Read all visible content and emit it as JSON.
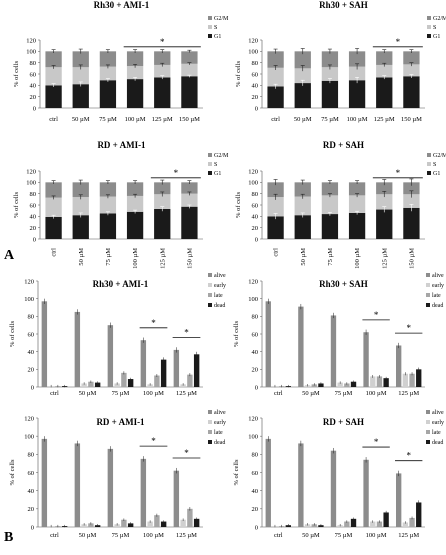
{
  "panel_labels": {
    "a": "A",
    "b": "B"
  },
  "colors": {
    "g2m": "#8c8c8c",
    "s": "#c8c8c8",
    "g1": "#1a1a1a",
    "alive": "#8c8c8c",
    "early": "#d0d0d0",
    "late": "#a6a6a6",
    "dead": "#1a1a1a"
  },
  "significance_marker": "*",
  "chart_data": [
    {
      "type": "bar",
      "stacked": true,
      "title": "Rh30 + AMI-1",
      "ylabel": "% of cells",
      "ylim": [
        0,
        120
      ],
      "yticks": [
        0,
        20,
        40,
        60,
        80,
        100,
        120
      ],
      "categories": [
        "ctrl",
        "50 µM",
        "75 µM",
        "100 µM",
        "125 µM",
        "150 µM"
      ],
      "series": [
        {
          "name": "G1",
          "values": [
            40,
            42,
            49,
            51,
            54,
            56
          ]
        },
        {
          "name": "S",
          "values": [
            32,
            30,
            24,
            23,
            22,
            22
          ]
        },
        {
          "name": "G2/M",
          "values": [
            28,
            28,
            27,
            26,
            24,
            22
          ]
        }
      ],
      "errors": [
        3,
        4,
        3,
        3,
        3,
        2
      ],
      "legend_position": "right",
      "significance": [
        {
          "from": 3,
          "to": 5,
          "label": "*"
        }
      ]
    },
    {
      "type": "bar",
      "stacked": true,
      "title": "Rh30 + SAH",
      "ylabel": "% of cells",
      "ylim": [
        0,
        120
      ],
      "yticks": [
        0,
        20,
        40,
        60,
        80,
        100,
        120
      ],
      "categories": [
        "ctrl",
        "50 µM",
        "75 µM",
        "100 µM",
        "125 µM",
        "150 µM"
      ],
      "series": [
        {
          "name": "G1",
          "values": [
            38,
            44,
            48,
            49,
            54,
            56
          ]
        },
        {
          "name": "S",
          "values": [
            33,
            26,
            24,
            24,
            22,
            21
          ]
        },
        {
          "name": "G2/M",
          "values": [
            29,
            30,
            28,
            27,
            24,
            23
          ]
        }
      ],
      "errors": [
        4,
        5,
        4,
        5,
        3,
        3
      ],
      "legend_position": "right",
      "significance": [
        {
          "from": 4,
          "to": 5,
          "label": "*"
        }
      ]
    },
    {
      "type": "bar",
      "stacked": true,
      "title": "RD + AMI-1",
      "ylabel": "% of cells",
      "ylim": [
        0,
        120
      ],
      "yticks": [
        0,
        20,
        40,
        60,
        80,
        100,
        120
      ],
      "categories": [
        "ctrl",
        "50 µM",
        "75 µM",
        "100 µM",
        "125 µM",
        "150 µM"
      ],
      "series": [
        {
          "name": "G1",
          "values": [
            39,
            42,
            45,
            48,
            53,
            57
          ]
        },
        {
          "name": "S",
          "values": [
            34,
            32,
            30,
            28,
            26,
            23
          ]
        },
        {
          "name": "G2/M",
          "values": [
            27,
            26,
            25,
            24,
            21,
            20
          ]
        }
      ],
      "errors": [
        3,
        4,
        3,
        3,
        4,
        3
      ],
      "legend_position": "right",
      "significance": [
        {
          "from": 4,
          "to": 5,
          "label": "*"
        }
      ]
    },
    {
      "type": "bar",
      "stacked": true,
      "title": "RD + SAH",
      "ylabel": "% of cells",
      "ylim": [
        0,
        120
      ],
      "yticks": [
        0,
        20,
        40,
        60,
        80,
        100,
        120
      ],
      "categories": [
        "ctrl",
        "50 µM",
        "75 µM",
        "100 µM",
        "125 µM",
        "150 µM"
      ],
      "series": [
        {
          "name": "G1",
          "values": [
            40,
            42,
            44,
            46,
            52,
            55
          ]
        },
        {
          "name": "S",
          "values": [
            34,
            33,
            33,
            31,
            27,
            24
          ]
        },
        {
          "name": "G2/M",
          "values": [
            26,
            25,
            23,
            23,
            21,
            21
          ]
        }
      ],
      "errors": [
        5,
        4,
        3,
        3,
        5,
        6
      ],
      "legend_position": "right",
      "significance": [
        {
          "from": 4,
          "to": 5,
          "label": "*"
        }
      ]
    },
    {
      "type": "bar",
      "grouped": true,
      "title": "Rh30 + AMI-1",
      "ylabel": "% of cells",
      "ylim": [
        0,
        120
      ],
      "yticks": [
        0,
        20,
        40,
        60,
        80,
        100,
        120
      ],
      "categories": [
        "ctrl",
        "50 µM",
        "75 µM",
        "100 µM",
        "125 µM"
      ],
      "series": [
        {
          "name": "alive",
          "values": [
            97,
            85,
            70,
            53,
            42
          ]
        },
        {
          "name": "early",
          "values": [
            1,
            4,
            4,
            3,
            3
          ]
        },
        {
          "name": "late",
          "values": [
            1,
            6,
            16,
            13,
            14
          ]
        },
        {
          "name": "dead",
          "values": [
            1,
            5,
            9,
            31,
            37
          ]
        }
      ],
      "legend_position": "right",
      "significance": [
        {
          "from": 3,
          "to": 3,
          "label": "*"
        },
        {
          "from": 4,
          "to": 4,
          "label": "*"
        }
      ]
    },
    {
      "type": "bar",
      "grouped": true,
      "title": "Rh30 + SAH",
      "ylabel": "% of cells",
      "ylim": [
        0,
        120
      ],
      "yticks": [
        0,
        20,
        40,
        60,
        80,
        100,
        120
      ],
      "categories": [
        "ctrl",
        "50 µM",
        "75 µM",
        "100 µM",
        "125 µM"
      ],
      "series": [
        {
          "name": "alive",
          "values": [
            97,
            91,
            81,
            62,
            47
          ]
        },
        {
          "name": "early",
          "values": [
            1,
            2,
            5,
            12,
            15
          ]
        },
        {
          "name": "late",
          "values": [
            1,
            3,
            4,
            12,
            15
          ]
        },
        {
          "name": "dead",
          "values": [
            1,
            4,
            6,
            10,
            20
          ]
        }
      ],
      "legend_position": "right",
      "significance": [
        {
          "from": 3,
          "to": 3,
          "label": "*"
        },
        {
          "from": 4,
          "to": 4,
          "label": "*"
        }
      ]
    },
    {
      "type": "bar",
      "grouped": true,
      "title": "RD + AMI-1",
      "ylabel": "% of cells",
      "ylim": [
        0,
        120
      ],
      "yticks": [
        0,
        20,
        40,
        60,
        80,
        100,
        120
      ],
      "categories": [
        "ctrl",
        "50 µM",
        "75 µM",
        "100 µM",
        "125 µM"
      ],
      "series": [
        {
          "name": "alive",
          "values": [
            97,
            92,
            86,
            75,
            62
          ]
        },
        {
          "name": "early",
          "values": [
            1,
            3,
            3,
            6,
            8
          ]
        },
        {
          "name": "late",
          "values": [
            1,
            4,
            8,
            13,
            20
          ]
        },
        {
          "name": "dead",
          "values": [
            1,
            2,
            4,
            6,
            9
          ]
        }
      ],
      "legend_position": "right",
      "significance": [
        {
          "from": 3,
          "to": 3,
          "label": "*"
        },
        {
          "from": 4,
          "to": 4,
          "label": "*"
        }
      ]
    },
    {
      "type": "bar",
      "grouped": true,
      "title": "RD + SAH",
      "ylabel": "% of cells",
      "ylim": [
        0,
        120
      ],
      "yticks": [
        0,
        20,
        40,
        60,
        80,
        100,
        120
      ],
      "categories": [
        "ctrl",
        "50 µM",
        "75 µM",
        "100 µM",
        "125 µM"
      ],
      "series": [
        {
          "name": "alive",
          "values": [
            97,
            92,
            84,
            74,
            59
          ]
        },
        {
          "name": "early",
          "values": [
            1,
            3,
            2,
            6,
            5
          ]
        },
        {
          "name": "late",
          "values": [
            1,
            3,
            6,
            6,
            10
          ]
        },
        {
          "name": "dead",
          "values": [
            2,
            2,
            9,
            16,
            27
          ]
        }
      ],
      "legend_position": "right",
      "significance": [
        {
          "from": 3,
          "to": 3,
          "label": "*"
        },
        {
          "from": 4,
          "to": 4,
          "label": "*"
        }
      ]
    }
  ]
}
